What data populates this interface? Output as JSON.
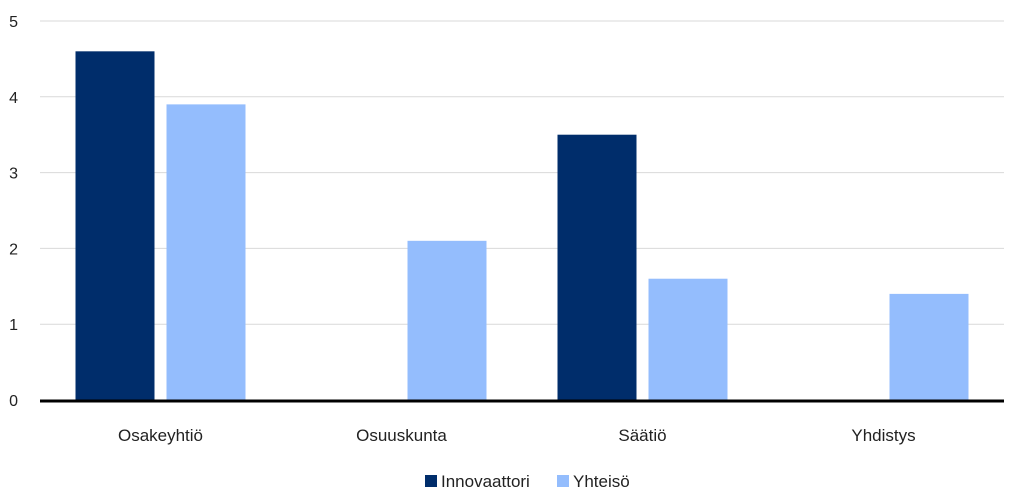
{
  "chart_data": {
    "type": "bar",
    "categories": [
      "Osakeyhtiö",
      "Osuuskunta",
      "Säätiö",
      "Yhdistys"
    ],
    "series": [
      {
        "name": "Innovaattori",
        "values": [
          4.6,
          0,
          3.5,
          0
        ],
        "color": "#002d6b"
      },
      {
        "name": "Yhteisö",
        "values": [
          3.9,
          2.1,
          1.6,
          1.4
        ],
        "color": "#94bdfd"
      }
    ],
    "yticks": [
      "0",
      "1",
      "2",
      "3",
      "4",
      "5"
    ],
    "ylim": [
      0,
      5
    ],
    "grid": true,
    "legend": "bottom-center"
  }
}
